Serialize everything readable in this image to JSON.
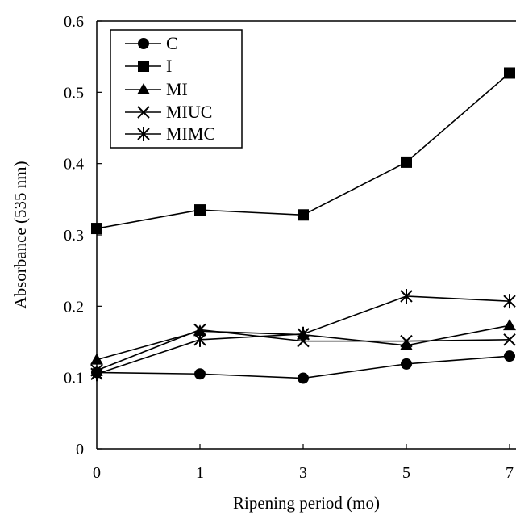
{
  "chart_data": {
    "type": "line",
    "categories": [
      "0",
      "1",
      "3",
      "5",
      "7"
    ],
    "xlabel": "Ripening period (mo)",
    "ylabel": "Absorbance (535 nm)",
    "ylim": [
      0,
      0.6
    ],
    "yticks": [
      "0",
      "0.1",
      "0.2",
      "0.3",
      "0.4",
      "0.5",
      "0.6"
    ],
    "grid": false,
    "legend_position": "top-left",
    "colors": {
      "line": "#000000",
      "marker": "#000000",
      "background": "#ffffff"
    },
    "series": [
      {
        "name": "C",
        "marker": "circle",
        "values": [
          0.107,
          0.105,
          0.099,
          0.119,
          0.13
        ]
      },
      {
        "name": "I",
        "marker": "square",
        "values": [
          0.309,
          0.335,
          0.328,
          0.402,
          0.527
        ]
      },
      {
        "name": "MI",
        "marker": "triangle",
        "values": [
          0.125,
          0.165,
          0.16,
          0.145,
          0.173
        ]
      },
      {
        "name": "MIUC",
        "marker": "x",
        "values": [
          0.11,
          0.167,
          0.151,
          0.151,
          0.153
        ]
      },
      {
        "name": "MIMC",
        "marker": "asterisk",
        "values": [
          0.105,
          0.153,
          0.161,
          0.214,
          0.207
        ]
      }
    ]
  }
}
